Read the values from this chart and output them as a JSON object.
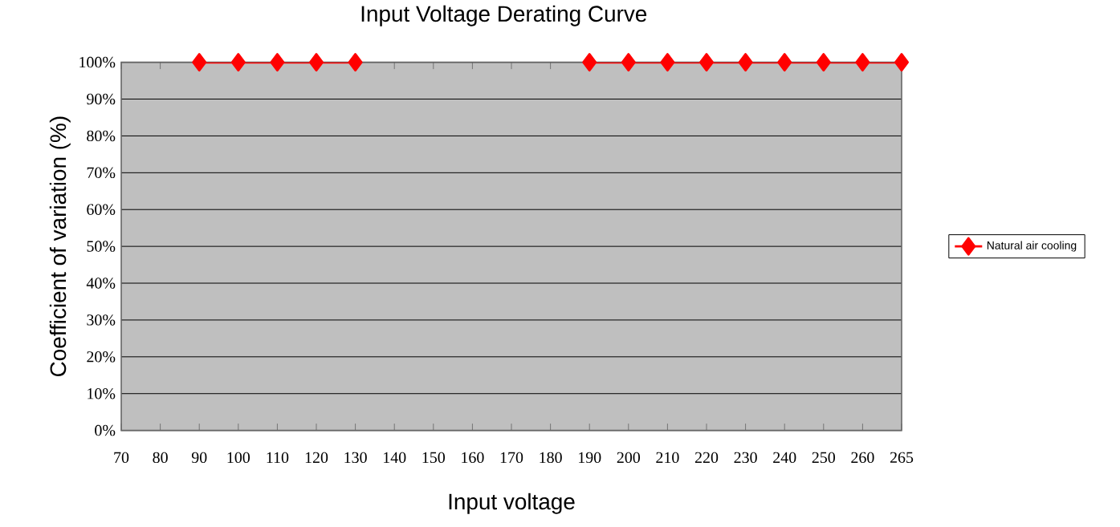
{
  "chart_data": {
    "type": "line",
    "title": "Input Voltage Derating Curve",
    "xlabel": "Input voltage",
    "ylabel": "Coefficient of variation (%)",
    "categories": [
      "70",
      "80",
      "90",
      "100",
      "110",
      "120",
      "130",
      "140",
      "150",
      "160",
      "170",
      "180",
      "190",
      "200",
      "210",
      "220",
      "230",
      "240",
      "250",
      "260",
      "265"
    ],
    "series": [
      {
        "name": "Natural air cooling",
        "color": "#ff0000",
        "values": [
          null,
          null,
          100,
          100,
          100,
          100,
          100,
          null,
          null,
          null,
          null,
          null,
          100,
          100,
          100,
          100,
          100,
          100,
          100,
          100,
          100
        ]
      }
    ],
    "ylim": [
      0,
      100
    ],
    "yticks": [
      {
        "value": 0,
        "label": "0%"
      },
      {
        "value": 10,
        "label": "10%"
      },
      {
        "value": 20,
        "label": "20%"
      },
      {
        "value": 30,
        "label": "30%"
      },
      {
        "value": 40,
        "label": "40%"
      },
      {
        "value": 50,
        "label": "50%"
      },
      {
        "value": 60,
        "label": "60%"
      },
      {
        "value": 70,
        "label": "70%"
      },
      {
        "value": 80,
        "label": "80%"
      },
      {
        "value": 90,
        "label": "90%"
      },
      {
        "value": 100,
        "label": "100%"
      }
    ],
    "grid": "y",
    "legend": "right",
    "marker": "diamond",
    "line_style": "solid"
  }
}
